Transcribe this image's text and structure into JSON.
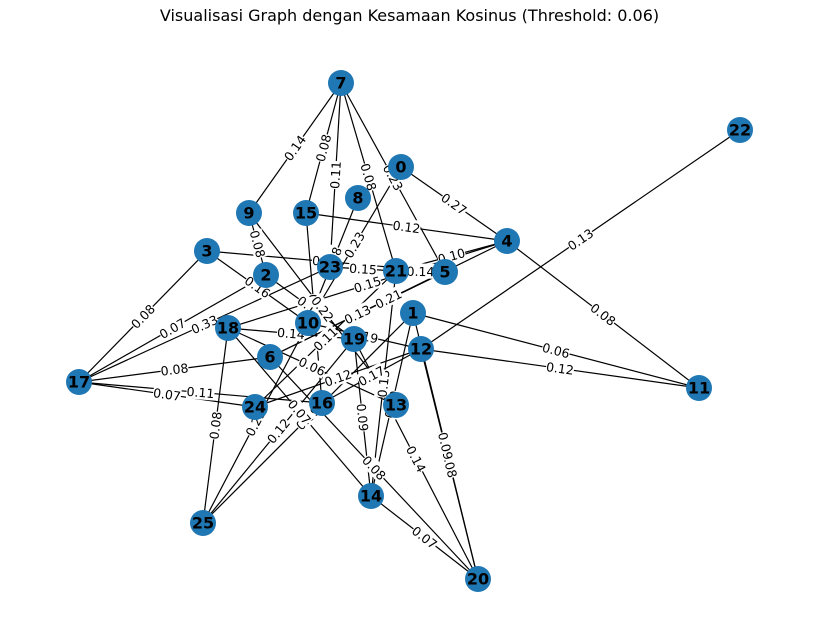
{
  "title": "Visualisasi Graph dengan Kesamaan Kosinus (Threshold: 0.06)",
  "colors": {
    "node": "#1f77b4",
    "edge": "#000000",
    "background": "#ffffff"
  },
  "graph": {
    "nodes": [
      "7",
      "0",
      "22",
      "8",
      "9",
      "15",
      "4",
      "3",
      "2",
      "23",
      "21",
      "5",
      "1",
      "18",
      "10",
      "19",
      "12",
      "11",
      "17",
      "6",
      "24",
      "16",
      "13",
      "14",
      "25",
      "20"
    ],
    "edges": [
      {
        "source": "22",
        "target": "12",
        "weight": "0.13"
      },
      {
        "source": "0",
        "target": "4",
        "weight": "0.27"
      },
      {
        "source": "11",
        "target": "1",
        "weight": "0.06"
      },
      {
        "source": "11",
        "target": "4",
        "weight": "0.08"
      },
      {
        "source": "11",
        "target": "12",
        "weight": "0.12"
      },
      {
        "source": "17",
        "target": "3",
        "weight": "0.08"
      },
      {
        "source": "17",
        "target": "2",
        "weight": "0.07"
      },
      {
        "source": "17",
        "target": "23",
        "weight": "0.33"
      },
      {
        "source": "17",
        "target": "6",
        "weight": "0.08"
      },
      {
        "source": "17",
        "target": "24",
        "weight": "0.07"
      },
      {
        "source": "17",
        "target": "16",
        "weight": "0.11"
      },
      {
        "source": "20",
        "target": "12",
        "weight": "0.08"
      },
      {
        "source": "20",
        "target": "1",
        "weight": "0.09"
      },
      {
        "source": "20",
        "target": "19",
        "weight": "0.14"
      },
      {
        "source": "20",
        "target": "14",
        "weight": "0.07"
      },
      {
        "source": "20",
        "target": "6",
        "weight": "0.08"
      },
      {
        "source": "25",
        "target": "18",
        "weight": "0.08"
      },
      {
        "source": "25",
        "target": "10",
        "weight": "0.21"
      },
      {
        "source": "25",
        "target": "1",
        "weight": "0.09"
      },
      {
        "source": "25",
        "target": "19",
        "weight": "0.12"
      },
      {
        "source": "14",
        "target": "18",
        "weight": "0.07"
      },
      {
        "source": "14",
        "target": "19",
        "weight": "0.09"
      },
      {
        "source": "14",
        "target": "1",
        "weight": "0.10"
      },
      {
        "source": "14",
        "target": "21",
        "weight": "0.13"
      },
      {
        "source": "7",
        "target": "9",
        "weight": "0.14"
      },
      {
        "source": "7",
        "target": "15",
        "weight": "0.08"
      },
      {
        "source": "7",
        "target": "23",
        "weight": "0.11"
      },
      {
        "source": "7",
        "target": "21",
        "weight": "0.08"
      },
      {
        "source": "7",
        "target": "5",
        "weight": "0.23"
      },
      {
        "source": "4",
        "target": "15",
        "weight": "0.12"
      },
      {
        "source": "4",
        "target": "21",
        "weight": "0.10"
      },
      {
        "source": "4",
        "target": "18",
        "weight": "0.15"
      },
      {
        "source": "4",
        "target": "6",
        "weight": "0.21"
      },
      {
        "source": "9",
        "target": "2",
        "weight": "0.08"
      },
      {
        "source": "3",
        "target": "5",
        "weight": "0.21"
      },
      {
        "source": "3",
        "target": "10",
        "weight": "0.16"
      },
      {
        "source": "15",
        "target": "16",
        "weight": "0.09"
      },
      {
        "source": "23",
        "target": "21",
        "weight": "0.15"
      },
      {
        "source": "21",
        "target": "5",
        "weight": "0.14"
      },
      {
        "source": "8",
        "target": "10",
        "weight": "0.08"
      },
      {
        "source": "2",
        "target": "19",
        "weight": "0.12"
      },
      {
        "source": "18",
        "target": "19",
        "weight": "0.14"
      },
      {
        "source": "10",
        "target": "12",
        "weight": "0.19"
      },
      {
        "source": "24",
        "target": "12",
        "weight": "0.12"
      },
      {
        "source": "6",
        "target": "5",
        "weight": "0.13"
      },
      {
        "source": "16",
        "target": "12",
        "weight": "0.17"
      },
      {
        "source": "13",
        "target": "18",
        "weight": "0.06"
      },
      {
        "source": "13",
        "target": "9",
        "weight": "0.22"
      },
      {
        "source": "24",
        "target": "21",
        "weight": "0.11"
      },
      {
        "source": "10",
        "target": "0",
        "weight": "0.23"
      }
    ]
  }
}
